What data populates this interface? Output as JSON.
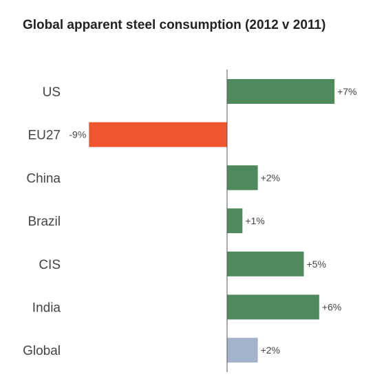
{
  "chart_data": {
    "type": "bar",
    "orientation": "horizontal",
    "title": "Global apparent steel consumption (2012 v 2011)",
    "xlabel": "",
    "ylabel": "",
    "xlim": [
      -10,
      10
    ],
    "grid": false,
    "legend": "none",
    "categories": [
      "US",
      "EU27",
      "China",
      "Brazil",
      "CIS",
      "India",
      "Global"
    ],
    "values": [
      7,
      -9,
      2,
      1,
      5,
      6,
      2
    ],
    "value_labels": [
      "+7%",
      "-9%",
      "+2%",
      "+1%",
      "+5%",
      "+6%",
      "+2%"
    ],
    "colors": {
      "positive": "#4f8a5d",
      "negative": "#ee5631",
      "global": "#a2b3cb",
      "axis": "#555555"
    }
  }
}
